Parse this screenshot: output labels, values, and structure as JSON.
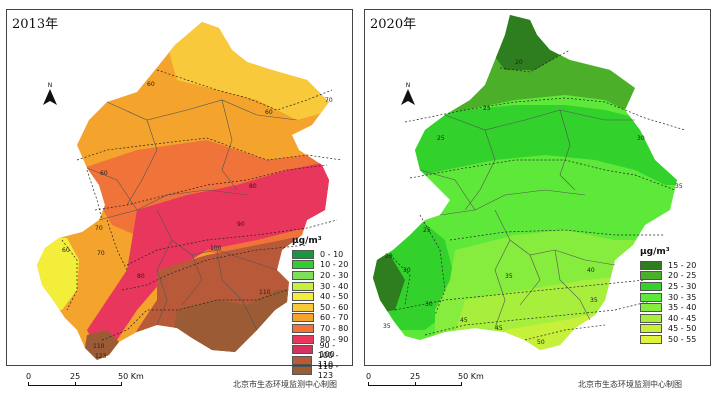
{
  "panels": [
    {
      "title": "2013年",
      "north_label": "N",
      "legend_title": "μg/m³",
      "legend": [
        {
          "label": "0 - 10",
          "color": "#1a9641"
        },
        {
          "label": "10 - 20",
          "color": "#33cc33"
        },
        {
          "label": "20 - 30",
          "color": "#7ee05a"
        },
        {
          "label": "30 - 40",
          "color": "#c8ef3c"
        },
        {
          "label": "40 - 50",
          "color": "#f2ee3a"
        },
        {
          "label": "50 - 60",
          "color": "#f8c93a"
        },
        {
          "label": "60 - 70",
          "color": "#f4a32c"
        },
        {
          "label": "70 - 80",
          "color": "#f0733a"
        },
        {
          "label": "80 - 90",
          "color": "#e8365c"
        },
        {
          "label": "90 - 100",
          "color": "#d6305e"
        },
        {
          "label": "100 - 110",
          "color": "#b85a3a"
        },
        {
          "label": "110 - 123",
          "color": "#9b5b35"
        }
      ],
      "contour_labels": [
        "60",
        "60",
        "70",
        "60",
        "70",
        "80",
        "90",
        "100",
        "80",
        "70",
        "60",
        "110",
        "110",
        "123"
      ]
    },
    {
      "title": "2020年",
      "north_label": "N",
      "legend_title": "μg/m³",
      "legend": [
        {
          "label": "15 - 20",
          "color": "#2e7d1e"
        },
        {
          "label": "20 - 25",
          "color": "#4caf2a"
        },
        {
          "label": "25 - 30",
          "color": "#33d12c"
        },
        {
          "label": "30 - 35",
          "color": "#5ee83a"
        },
        {
          "label": "35 - 40",
          "color": "#86ec3e"
        },
        {
          "label": "40 - 45",
          "color": "#a8ee3c"
        },
        {
          "label": "45 - 50",
          "color": "#c6f03a"
        },
        {
          "label": "50 - 55",
          "color": "#e2f23a"
        }
      ],
      "contour_labels": [
        "20",
        "25",
        "25",
        "30",
        "35",
        "25",
        "20",
        "30",
        "35",
        "40",
        "45",
        "35",
        "45",
        "50",
        "30",
        "35"
      ]
    }
  ],
  "scalebar": {
    "ticks": [
      "0",
      "25",
      "50 Km"
    ]
  },
  "credit": "北京市生态环境监测中心制图"
}
